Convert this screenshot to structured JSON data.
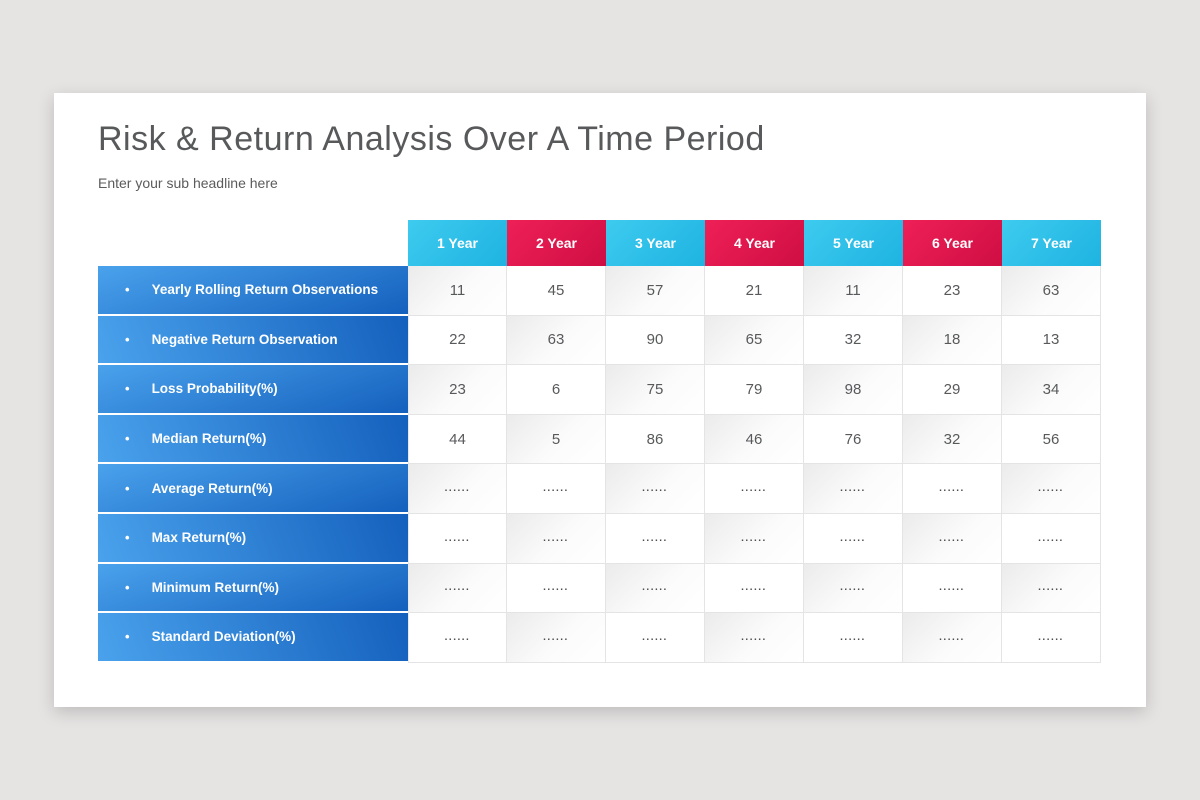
{
  "slide": {
    "title": "Risk & Return Analysis Over A Time Period",
    "subtitle": "Enter your sub headline here"
  },
  "colors": {
    "page_background": "#e6e4e3",
    "card_background": "#ffffff",
    "title_text": "#58595b",
    "cell_text": "#58595b",
    "header_cyan": [
      "#3ecbef",
      "#1eb3e1"
    ],
    "header_red": [
      "#ee2057",
      "#cf0e43"
    ],
    "label_blue_light": "#4aa2ec",
    "label_blue_dark": "#1460bd"
  },
  "table": {
    "bullet_glyph": "•",
    "column_headers": [
      {
        "label": "1 Year",
        "color": "cyan"
      },
      {
        "label": "2 Year",
        "color": "red"
      },
      {
        "label": "3 Year",
        "color": "cyan"
      },
      {
        "label": "4 Year",
        "color": "red"
      },
      {
        "label": "5 Year",
        "color": "cyan"
      },
      {
        "label": "6 Year",
        "color": "red"
      },
      {
        "label": "7 Year",
        "color": "cyan"
      }
    ],
    "rows": [
      {
        "label": "Yearly Rolling Return Observations",
        "values": [
          "11",
          "45",
          "57",
          "21",
          "11",
          "23",
          "63"
        ]
      },
      {
        "label": "Negative Return Observation",
        "values": [
          "22",
          "63",
          "90",
          "65",
          "32",
          "18",
          "13"
        ]
      },
      {
        "label": "Loss Probability(%)",
        "values": [
          "23",
          "6",
          "75",
          "79",
          "98",
          "29",
          "34"
        ]
      },
      {
        "label": "Median Return(%)",
        "values": [
          "44",
          "5",
          "86",
          "46",
          "76",
          "32",
          "56"
        ]
      },
      {
        "label": "Average Return(%)",
        "values": [
          "......",
          "......",
          "......",
          "......",
          "......",
          "......",
          "......"
        ]
      },
      {
        "label": "Max Return(%)",
        "values": [
          "......",
          "......",
          "......",
          "......",
          "......",
          "......",
          "......"
        ]
      },
      {
        "label": "Minimum Return(%)",
        "values": [
          "......",
          "......",
          "......",
          "......",
          "......",
          "......",
          "......"
        ]
      },
      {
        "label": "Standard Deviation(%)",
        "values": [
          "......",
          "......",
          "......",
          "......",
          "......",
          "......",
          "......"
        ]
      }
    ]
  }
}
